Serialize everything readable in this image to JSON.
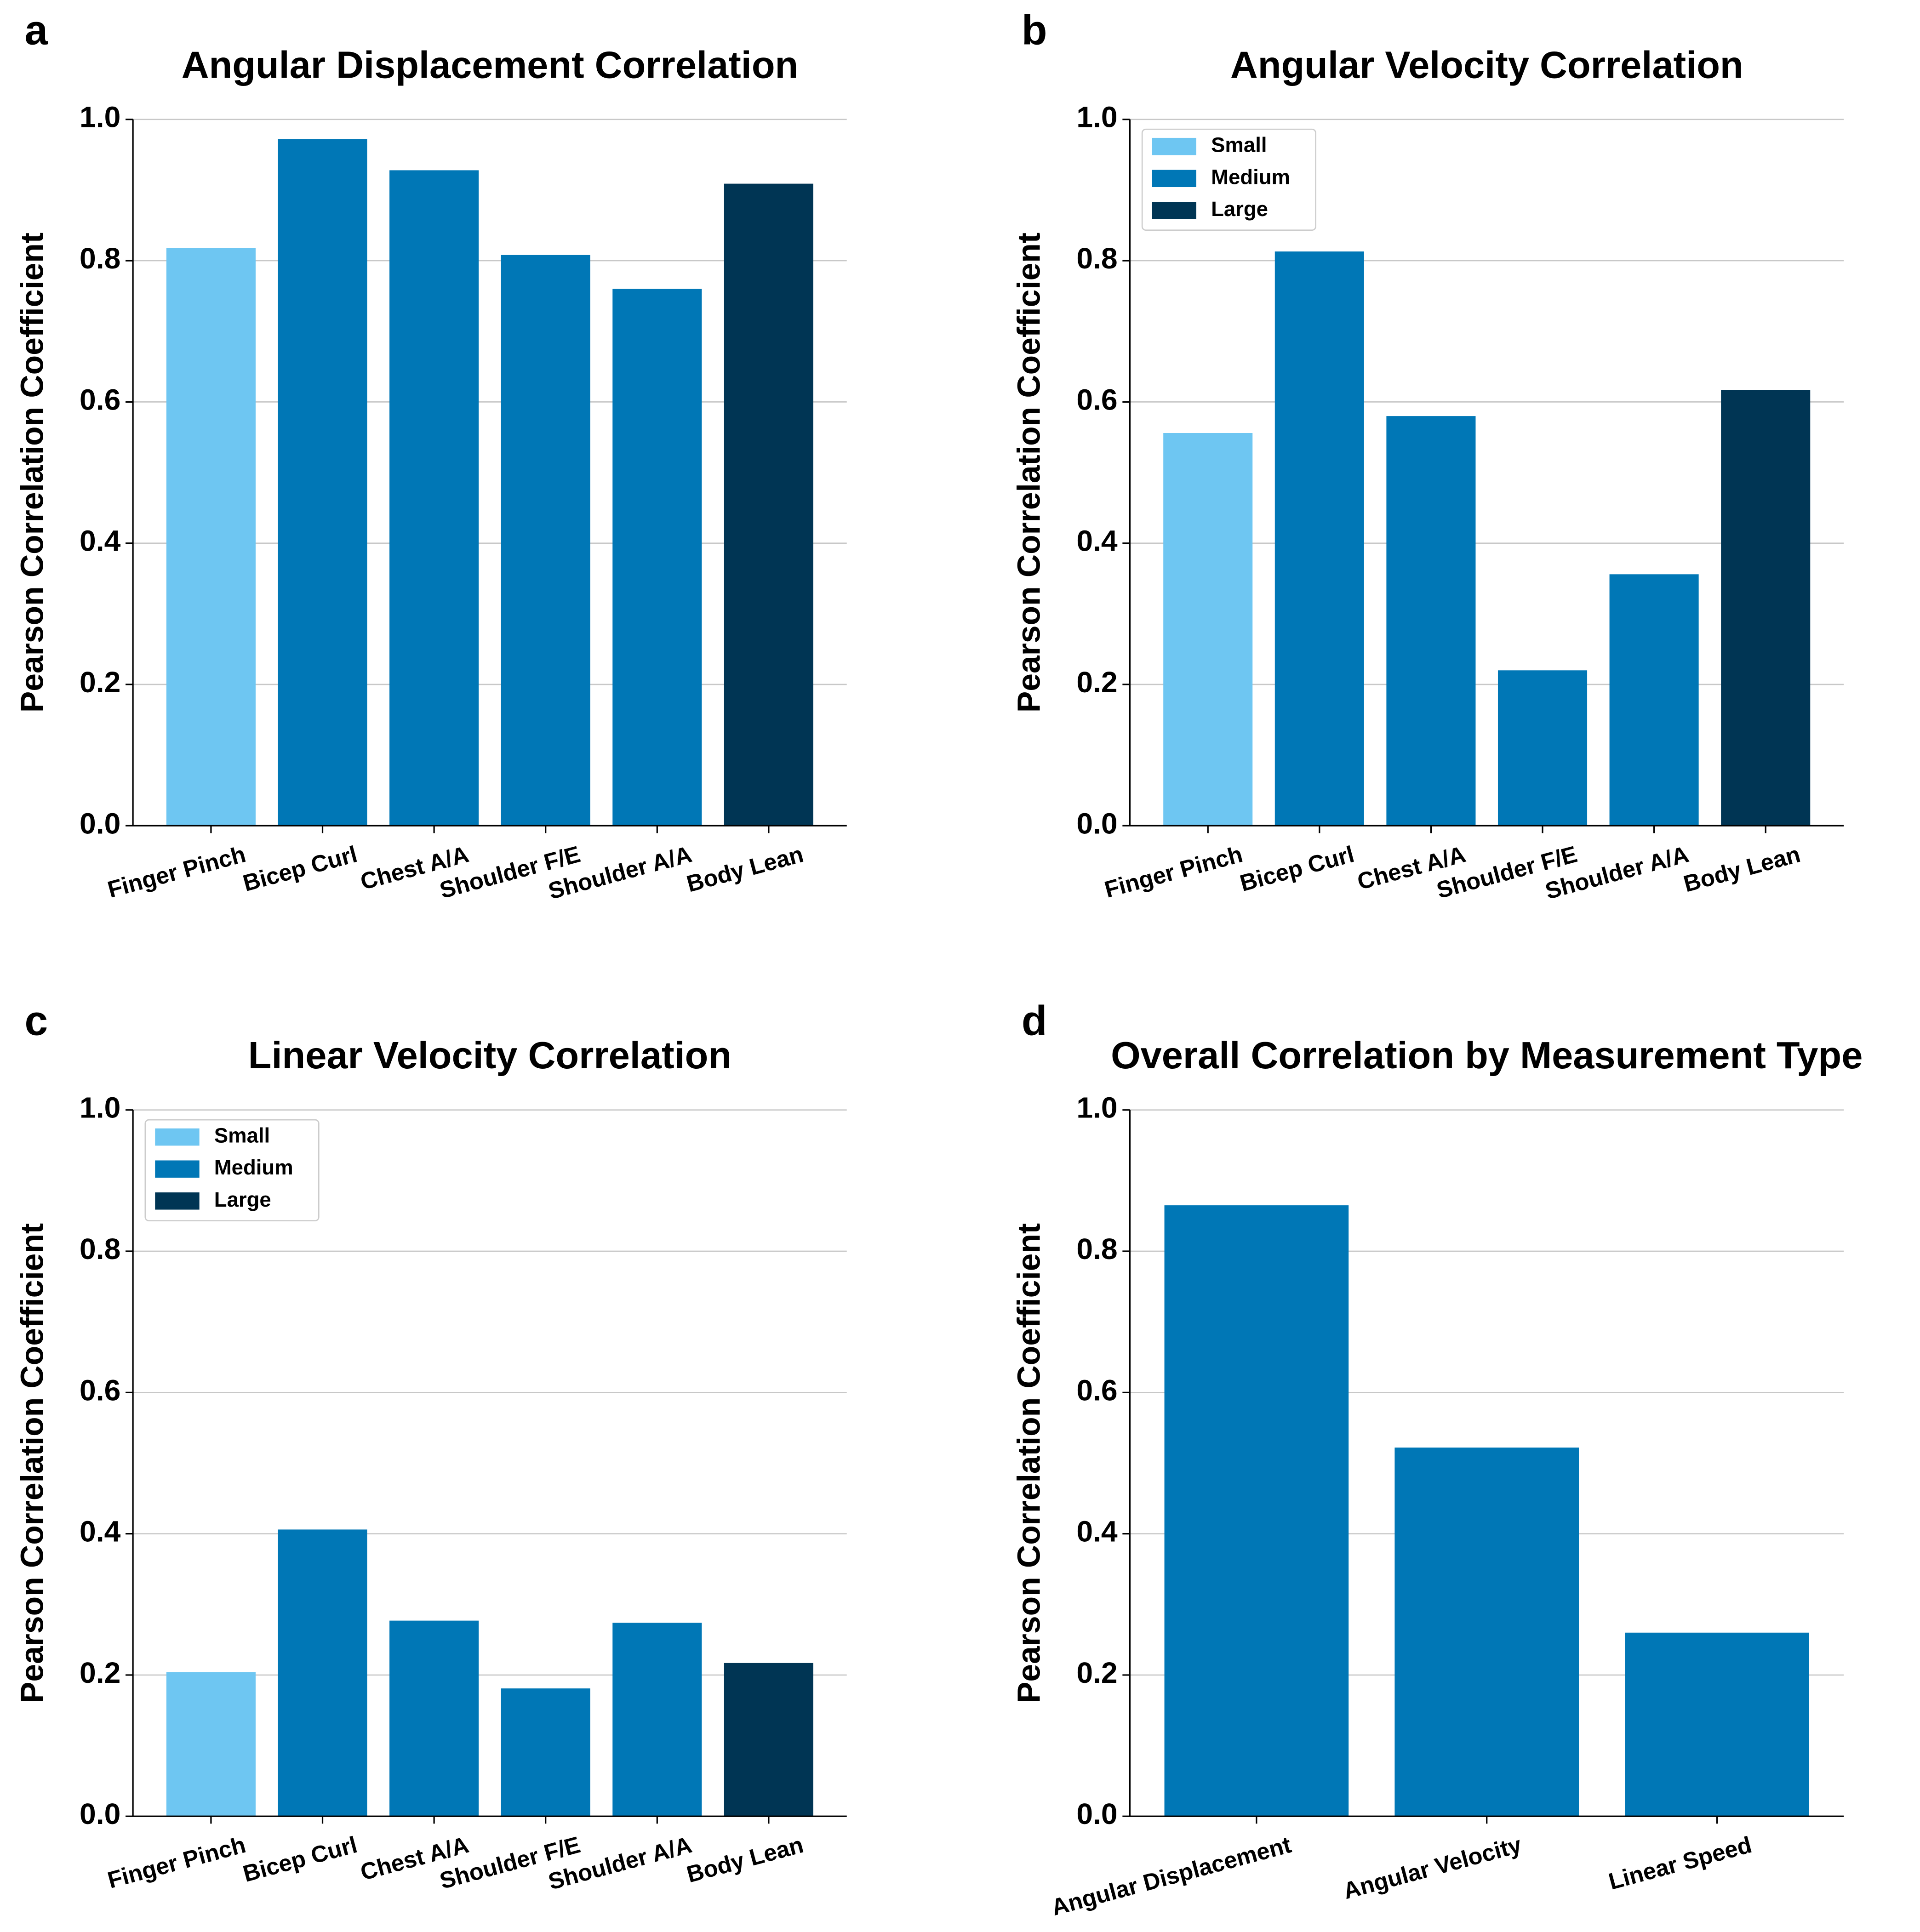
{
  "chart_data": [
    {
      "type": "bar",
      "panel_label": "a",
      "title": "Angular Displacement Correlation",
      "ylabel": "Pearson Correlation Coefficient",
      "categories": [
        "Finger Pinch",
        "Bicep Curl",
        "Chest A/A",
        "Shoulder F/E",
        "Shoulder A/A",
        "Body Lean"
      ],
      "values": [
        0.818,
        0.972,
        0.928,
        0.808,
        0.76,
        0.909
      ],
      "colors": [
        "#6ec6f2",
        "#0077b6",
        "#0077b6",
        "#0077b6",
        "#0077b6",
        "#003554"
      ],
      "ylim": [
        0,
        1
      ],
      "yticks": [
        {
          "value": 0,
          "label": "0.0"
        },
        0.2,
        0.4,
        0.6,
        0.8,
        {
          "value": 1,
          "label": "1.0"
        }
      ],
      "grid": true
    },
    {
      "type": "bar",
      "panel_label": "b",
      "title": "Angular Velocity Correlation",
      "ylabel": "Pearson Correlation Coefficient",
      "categories": [
        "Finger Pinch",
        "Bicep Curl",
        "Chest A/A",
        "Shoulder F/E",
        "Shoulder A/A",
        "Body Lean"
      ],
      "values": [
        0.556,
        0.813,
        0.58,
        0.22,
        0.356,
        0.617
      ],
      "colors": [
        "#6ec6f2",
        "#0077b6",
        "#0077b6",
        "#0077b6",
        "#0077b6",
        "#003554"
      ],
      "legend": [
        {
          "name": "Small",
          "color": "#6ec6f2"
        },
        {
          "name": "Medium",
          "color": "#0077b6"
        },
        {
          "name": "Large",
          "color": "#003554"
        }
      ],
      "legend_position": "upper left",
      "ylim": [
        0,
        1
      ],
      "yticks": [
        {
          "value": 0,
          "label": "0.0"
        },
        0.2,
        0.4,
        0.6,
        0.8,
        {
          "value": 1,
          "label": "1.0"
        }
      ],
      "grid": true
    },
    {
      "type": "bar",
      "panel_label": "c",
      "title": "Linear Velocity Correlation",
      "ylabel": "Pearson Correlation Coefficient",
      "categories": [
        "Finger Pinch",
        "Bicep Curl",
        "Chest A/A",
        "Shoulder F/E",
        "Shoulder A/A",
        "Body Lean"
      ],
      "values": [
        0.204,
        0.406,
        0.277,
        0.181,
        0.274,
        0.217
      ],
      "colors": [
        "#6ec6f2",
        "#0077b6",
        "#0077b6",
        "#0077b6",
        "#0077b6",
        "#003554"
      ],
      "legend": [
        {
          "name": "Small",
          "color": "#6ec6f2"
        },
        {
          "name": "Medium",
          "color": "#0077b6"
        },
        {
          "name": "Large",
          "color": "#003554"
        }
      ],
      "legend_position": "upper left",
      "ylim": [
        0,
        1
      ],
      "yticks": [
        {
          "value": 0,
          "label": "0.0"
        },
        0.2,
        0.4,
        0.6,
        0.8,
        {
          "value": 1,
          "label": "1.0"
        }
      ],
      "grid": true
    },
    {
      "type": "bar",
      "panel_label": "d",
      "title": "Overall Correlation by Measurement Type",
      "ylabel": "Pearson Correlation Coefficient",
      "categories": [
        "Angular Displacement",
        "Angular Velocity",
        "Linear Speed"
      ],
      "values": [
        0.865,
        0.522,
        0.26
      ],
      "colors": [
        "#0077b6",
        "#0077b6",
        "#0077b6"
      ],
      "ylim": [
        0,
        1
      ],
      "yticks": [
        {
          "value": 0,
          "label": "0.0"
        },
        0.2,
        0.4,
        0.6,
        0.8,
        {
          "value": 1,
          "label": "1.0"
        }
      ],
      "grid": true
    }
  ]
}
